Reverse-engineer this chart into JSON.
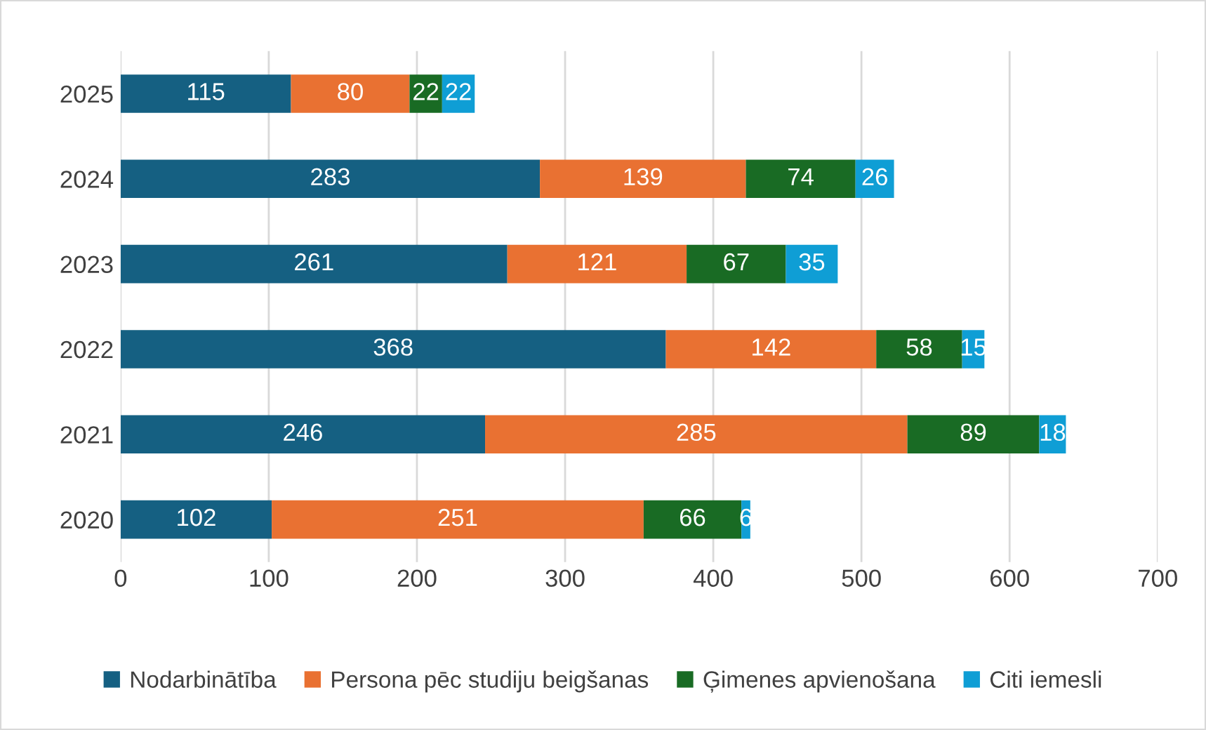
{
  "chart_data": {
    "type": "bar",
    "orientation": "horizontal",
    "stacked": true,
    "data_labels": true,
    "categories": [
      "2025",
      "2024",
      "2023",
      "2022",
      "2021",
      "2020"
    ],
    "series": [
      {
        "name": "Nodarbinātība",
        "color": "#156082",
        "values": [
          115,
          283,
          261,
          368,
          246,
          102
        ]
      },
      {
        "name": "Persona pēc studiju beigšanas",
        "color": "#e97132",
        "values": [
          80,
          139,
          121,
          142,
          285,
          251
        ]
      },
      {
        "name": "Ģimenes apvienošana",
        "color": "#196b24",
        "values": [
          22,
          74,
          67,
          58,
          89,
          66
        ]
      },
      {
        "name": "Citi iemesli",
        "color": "#0f9ed5",
        "values": [
          22,
          26,
          35,
          15,
          18,
          6
        ]
      }
    ],
    "xlim": [
      0,
      700
    ],
    "xticks": [
      0,
      100,
      200,
      300,
      400,
      500,
      600,
      700
    ],
    "grid": "x",
    "legend": "bottom"
  }
}
